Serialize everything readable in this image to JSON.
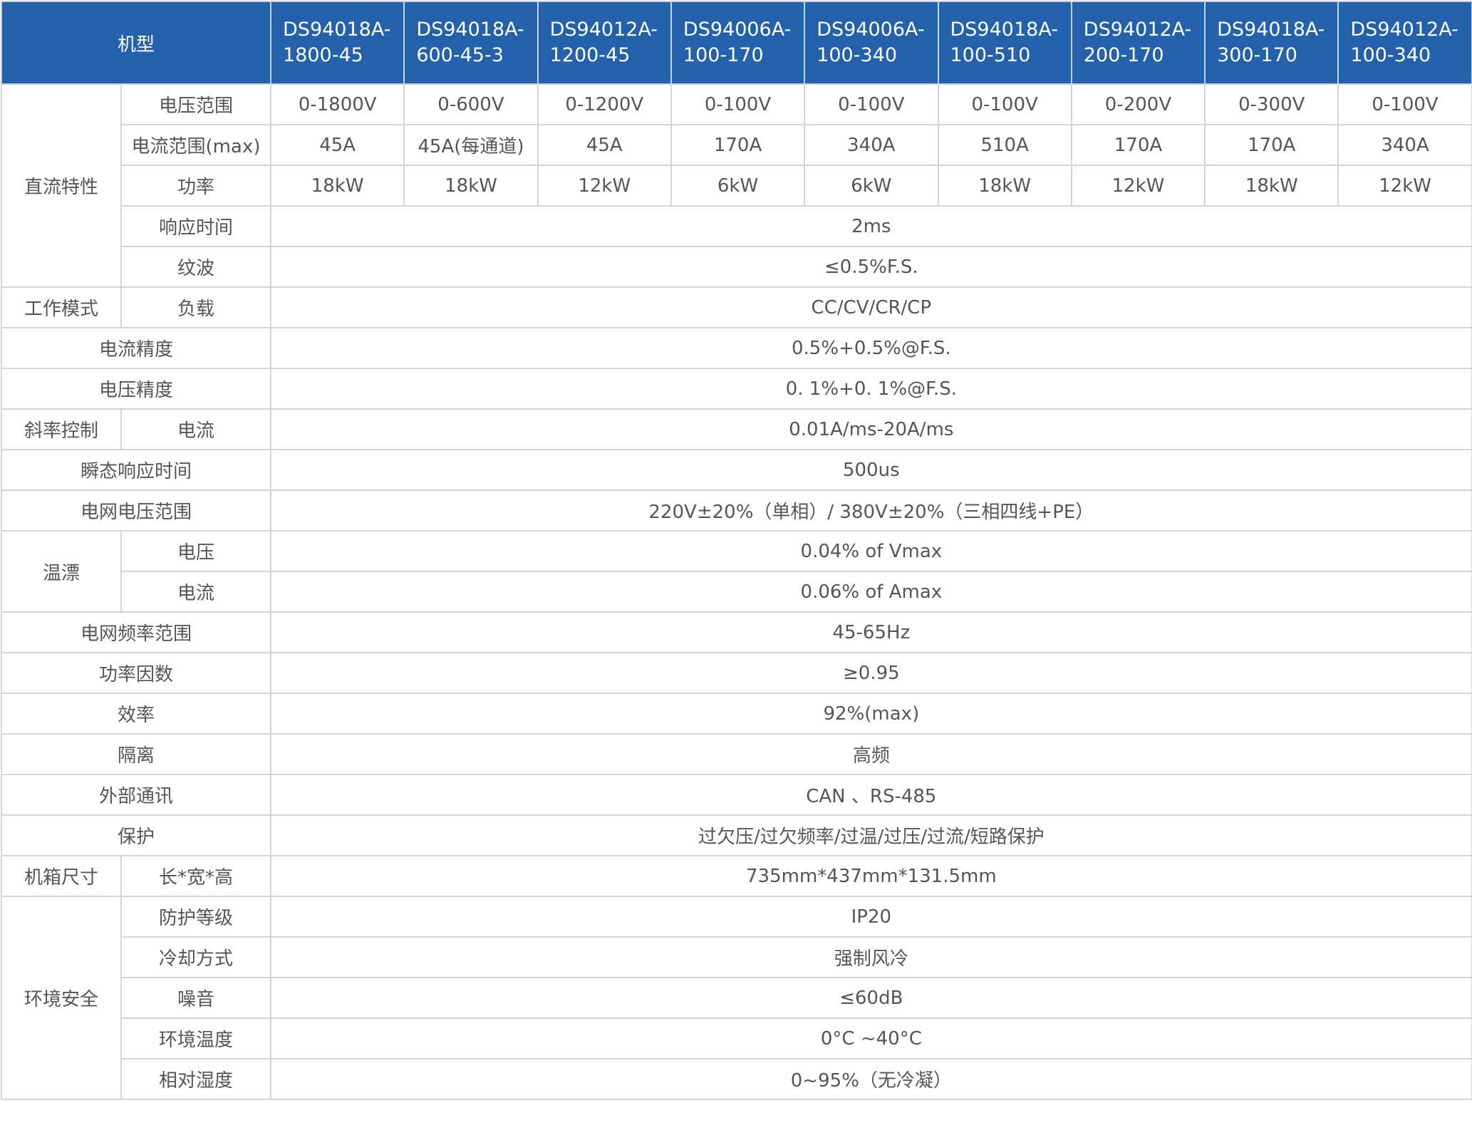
{
  "colors": {
    "header_bg": "#2361ad",
    "header_text": "#ffffff",
    "body_text": "#555555",
    "border": "#d4d4d4"
  },
  "header": {
    "label": "机型",
    "models": [
      [
        "DS94018A-",
        "1800-45"
      ],
      [
        "DS94018A-",
        "600-45-3"
      ],
      [
        "DS94012A-",
        "1200-45"
      ],
      [
        "DS94006A-",
        "100-170"
      ],
      [
        "DS94006A-",
        "100-340"
      ],
      [
        "DS94018A-",
        "100-510"
      ],
      [
        "DS94012A-",
        "200-170"
      ],
      [
        "DS94018A-",
        "300-170"
      ],
      [
        "DS94012A-",
        "100-340"
      ]
    ]
  },
  "dc": {
    "group": "直流特性",
    "voltage": {
      "label": "电压范围",
      "values": [
        "0-1800V",
        "0-600V",
        "0-1200V",
        "0-100V",
        "0-100V",
        "0-100V",
        "0-200V",
        "0-300V",
        "0-100V"
      ]
    },
    "current": {
      "label": "电流范围(max)",
      "values": [
        "45A",
        "45A(每通道)",
        "45A",
        "170A",
        "340A",
        "510A",
        "170A",
        "170A",
        "340A"
      ]
    },
    "power": {
      "label": "功率",
      "values": [
        "18kW",
        "18kW",
        "12kW",
        "6kW",
        "6kW",
        "18kW",
        "12kW",
        "18kW",
        "12kW"
      ]
    },
    "response": {
      "label": "响应时间",
      "value": "2ms"
    },
    "ripple": {
      "label": "纹波",
      "value": "≤0.5%F.S."
    }
  },
  "mode": {
    "group": "工作模式",
    "label": "负载",
    "value": "CC/CV/CR/CP"
  },
  "current_acc": {
    "label": "电流精度",
    "value": "0.5%+0.5%@F.S."
  },
  "voltage_acc": {
    "label": "电压精度",
    "value": "0. 1%+0. 1%@F.S."
  },
  "slope": {
    "group": "斜率控制",
    "label": "电流",
    "value": "0.01A/ms-20A/ms"
  },
  "transient": {
    "label": "瞬态响应时间",
    "value": "500us"
  },
  "grid_voltage": {
    "label": "电网电压范围",
    "value": "220V±20%（单相）/ 380V±20%（三相四线+PE）"
  },
  "drift": {
    "group": "温漂",
    "voltage_label": "电压",
    "voltage_value": "0.04% of Vmax",
    "current_label": "电流",
    "current_value": "0.06% of Amax"
  },
  "grid_freq": {
    "label": "电网频率范围",
    "value": "45-65Hz"
  },
  "pf": {
    "label": "功率因数",
    "value": "≥0.95"
  },
  "efficiency": {
    "label": "效率",
    "value": "92%(max)"
  },
  "isolation": {
    "label": "隔离",
    "value": "高频"
  },
  "comm": {
    "label": "外部通讯",
    "value": "CAN 、RS-485"
  },
  "protection": {
    "label": "保护",
    "value": "过欠压/过欠频率/过温/过压/过流/短路保护"
  },
  "chassis": {
    "group": "机箱尺寸",
    "label": "长*宽*高",
    "value": "735mm*437mm*131.5mm"
  },
  "env": {
    "group": "环境安全",
    "ip": {
      "label": "防护等级",
      "value": "IP20"
    },
    "cooling": {
      "label": "冷却方式",
      "value": "强制风冷"
    },
    "noise": {
      "label": "噪音",
      "value": "≤60dB"
    },
    "temp": {
      "label": "环境温度",
      "value": "0°C ~40°C"
    },
    "humidity": {
      "label": "相对湿度",
      "value": "0~95%（无冷凝）"
    }
  }
}
